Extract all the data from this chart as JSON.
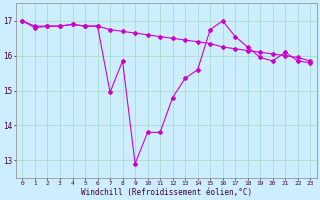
{
  "xlabel": "Windchill (Refroidissement éolien,°C)",
  "background_color": "#cceeff",
  "grid_color": "#aaddcc",
  "line_color": "#cc00cc",
  "x_values": [
    0,
    1,
    2,
    3,
    4,
    5,
    6,
    7,
    8,
    9,
    10,
    11,
    12,
    13,
    14,
    15,
    16,
    17,
    18,
    19,
    20,
    21,
    22,
    23
  ],
  "line1": [
    17.0,
    16.85,
    16.85,
    16.85,
    16.9,
    16.85,
    16.85,
    16.75,
    16.7,
    16.65,
    16.6,
    16.55,
    16.5,
    16.45,
    16.4,
    16.35,
    16.25,
    16.2,
    16.15,
    16.1,
    16.05,
    16.0,
    15.95,
    15.85
  ],
  "line2": [
    17.0,
    16.8,
    16.85,
    16.85,
    16.9,
    16.85,
    16.85,
    14.95,
    15.85,
    12.9,
    13.8,
    13.8,
    14.8,
    15.35,
    15.6,
    16.75,
    17.0,
    16.55,
    16.25,
    15.95,
    15.85,
    16.1,
    15.85,
    15.8
  ],
  "ylim": [
    12.5,
    17.5
  ],
  "yticks": [
    13,
    14,
    15,
    16,
    17
  ],
  "xlim": [
    -0.5,
    23.5
  ],
  "figsize": [
    3.2,
    2.0
  ],
  "dpi": 100
}
